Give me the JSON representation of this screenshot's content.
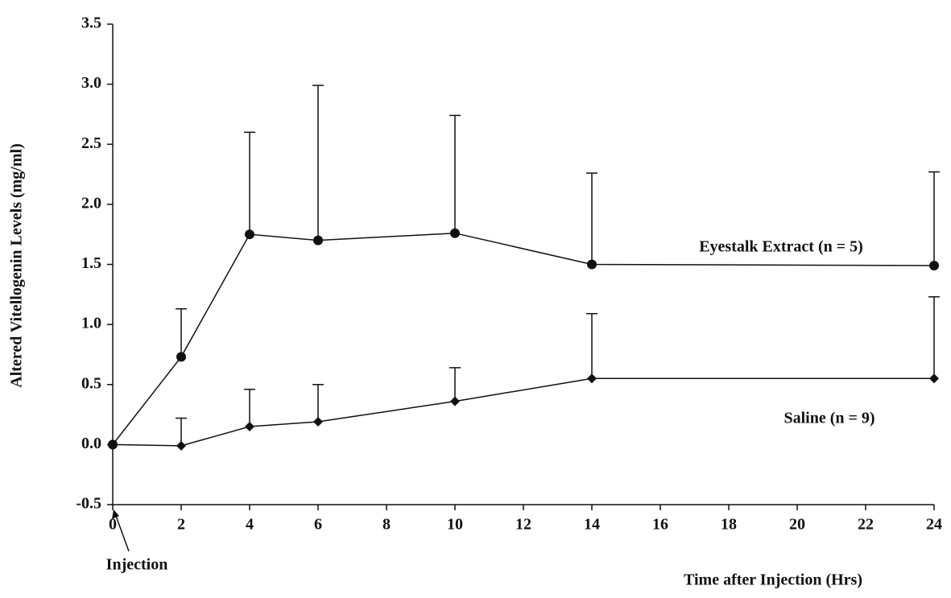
{
  "chart_data": {
    "type": "line",
    "x_label": "Time after Injection (Hrs)",
    "y_label": "Altered Vitellogenin Levels (mg/ml)",
    "annotation": "Injection",
    "x": [
      0,
      2,
      4,
      6,
      10,
      14,
      24
    ],
    "series": [
      {
        "name": "Eyestalk Extract (n = 5)",
        "color": "#111111",
        "marker": "circle",
        "values": [
          0,
          0.73,
          1.75,
          1.7,
          1.76,
          1.5,
          1.49
        ],
        "errors": [
          null,
          0.4,
          0.85,
          1.29,
          0.98,
          0.76,
          0.78
        ]
      },
      {
        "name": "Saline (n = 9)",
        "color": "#111111",
        "marker": "diamond",
        "values": [
          0,
          -0.01,
          0.15,
          0.19,
          0.36,
          0.55,
          0.55
        ],
        "errors": [
          null,
          0.23,
          0.31,
          0.31,
          0.28,
          0.54,
          0.68
        ]
      }
    ],
    "xlim": [
      0,
      24
    ],
    "xticks": [
      0,
      2,
      4,
      6,
      8,
      10,
      12,
      14,
      16,
      18,
      20,
      22,
      24
    ],
    "ylim": [
      -0.5,
      3.5
    ],
    "yticks": [
      3.5,
      {
        "value": 3,
        "label": "3.0"
      },
      2.5,
      {
        "value": 2,
        "label": "2.0"
      },
      1.5,
      {
        "value": 1,
        "label": "1.0"
      },
      0.5,
      {
        "value": 0,
        "label": "0.0"
      },
      -0.5
    ],
    "error_bars": "upper"
  }
}
